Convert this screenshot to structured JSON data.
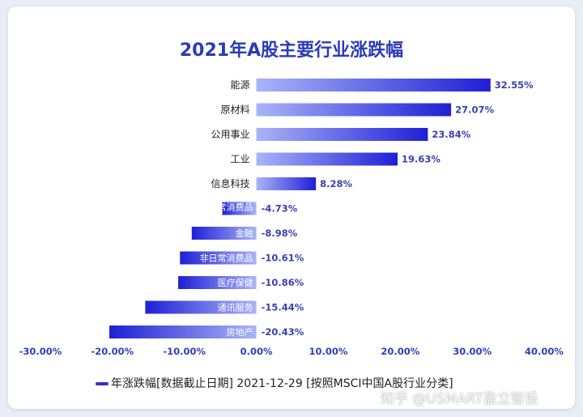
{
  "chart_data": {
    "type": "bar",
    "orientation": "horizontal",
    "title": "2021年A股主要行业涨跌幅",
    "categories": [
      "能源",
      "原材料",
      "公用事业",
      "工业",
      "信息科技",
      "日常消费品",
      "金融",
      "非日常消费品",
      "医疗保健",
      "通讯服务",
      "房地产"
    ],
    "values": [
      32.55,
      27.07,
      23.84,
      19.63,
      8.28,
      -4.73,
      -8.98,
      -10.61,
      -10.86,
      -15.44,
      -20.43
    ],
    "value_labels": [
      "32.55%",
      "27.07%",
      "23.84%",
      "19.63%",
      "8.28%",
      "-4.73%",
      "-8.98%",
      "-10.61%",
      "-10.86%",
      "-15.44%",
      "-20.43%"
    ],
    "xlim": [
      -30,
      40
    ],
    "xticks": [
      -30,
      -20,
      -10,
      0,
      10,
      20,
      30,
      40
    ],
    "xtick_labels": [
      "-30.00%",
      "-20.00%",
      "-10.00%",
      "0.00%",
      "10.00%",
      "20.00%",
      "30.00%",
      "40.00%"
    ],
    "legend_label": "年涨跌幅[数据截止日期] 2021-12-29  [按照MSCI中国A股行业分类]",
    "legend_position": "bottom",
    "bar_color_start": "#a9b5f7",
    "bar_color_end": "#1f1fd6",
    "grid": false
  },
  "watermark": "知乎 @USMART盈立智投"
}
